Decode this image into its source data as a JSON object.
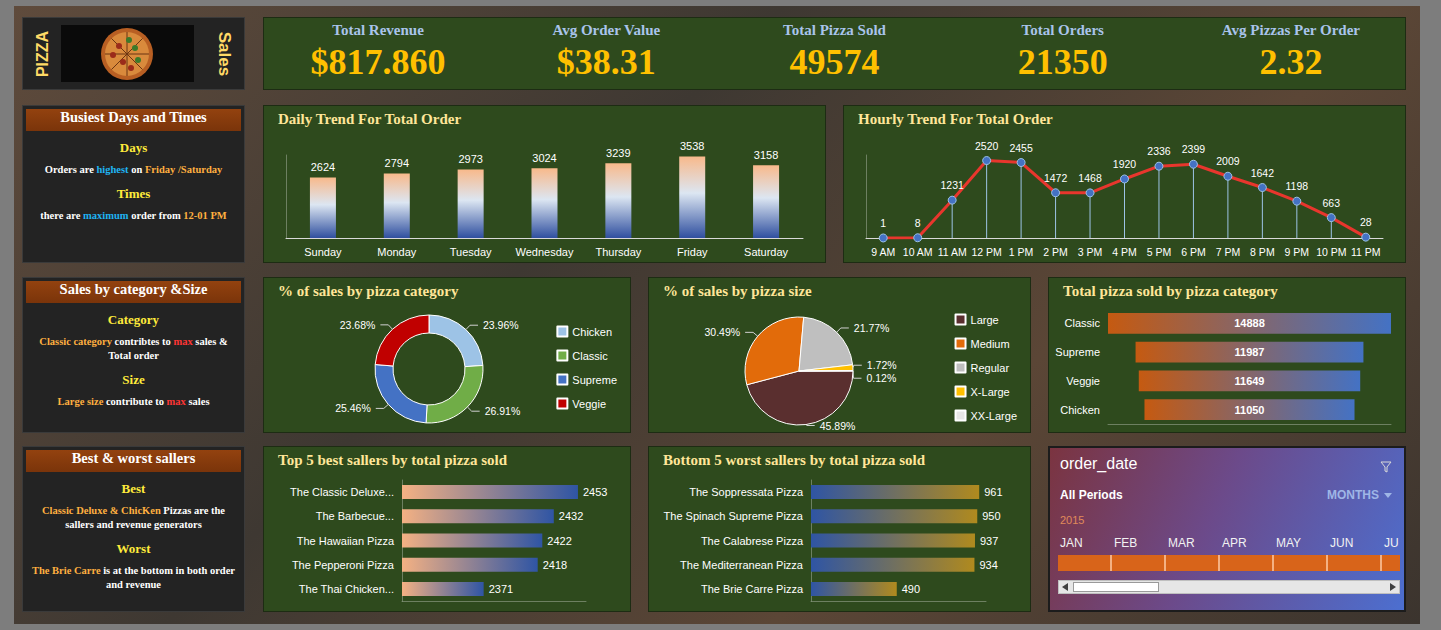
{
  "header": {
    "left_text": "PIZZA",
    "right_text": "Sales"
  },
  "kpis": [
    {
      "label": "Total Revenue",
      "value": "$817.860"
    },
    {
      "label": "Avg Order Value",
      "value": "$38.31"
    },
    {
      "label": "Total Pizza Sold",
      "value": "49574"
    },
    {
      "label": "Total Orders",
      "value": "21350"
    },
    {
      "label": "Avg Pizzas Per Order",
      "value": "2.32"
    }
  ],
  "insights": [
    {
      "title": "Busiest Days and Times",
      "items": [
        {
          "heading": "Days",
          "text": [
            {
              "text": "Orders are "
            },
            {
              "text": "highest",
              "style": "accent"
            },
            {
              "text": " on "
            },
            {
              "text": "Friday /Saturday",
              "style": "warm"
            }
          ]
        },
        {
          "heading": "Times",
          "text": [
            {
              "text": "there are "
            },
            {
              "text": "maximum",
              "style": "accent"
            },
            {
              "text": " order  from "
            },
            {
              "text": "12-01 PM",
              "style": "warm"
            }
          ]
        }
      ]
    },
    {
      "title": "Sales by category &Size",
      "items": [
        {
          "heading": "Category",
          "text": [
            {
              "text": "Classic category",
              "style": "warm"
            },
            {
              "text": " contribtes to "
            },
            {
              "text": "max",
              "style": "alert"
            },
            {
              "text": " sales & Total order"
            }
          ]
        },
        {
          "heading": "Size",
          "text": [
            {
              "text": "Large size",
              "style": "warm"
            },
            {
              "text": " contribute to "
            },
            {
              "text": "max",
              "style": "alert"
            },
            {
              "text": " sales"
            }
          ]
        }
      ]
    },
    {
      "title": "Best & worst sallers",
      "items": [
        {
          "heading": "Best",
          "text": [
            {
              "text": "Classic Deluxe & ChicKen",
              "style": "warm"
            },
            {
              "text": " Pizzas are the sallers and revenue generators"
            }
          ]
        },
        {
          "heading": "Worst",
          "text": [
            {
              "text": "The Brie Carre",
              "style": "warm"
            },
            {
              "text": " is at the bottom in both order and revenue"
            }
          ]
        }
      ]
    }
  ],
  "chart_data": [
    {
      "type": "bar",
      "title": "Daily Trend For Total Order",
      "categories": [
        "Sunday",
        "Monday",
        "Tuesday",
        "Wednesday",
        "Thursday",
        "Friday",
        "Saturday"
      ],
      "values": [
        2624,
        2794,
        2973,
        3024,
        3239,
        3538,
        3158
      ],
      "color": "#f8b98b",
      "ylim": [
        0,
        3600
      ],
      "grid": false,
      "data_labels": true,
      "tick_labels": "x"
    },
    {
      "type": "line",
      "title": "Hourly Trend For Total Order",
      "categories": [
        "9 AM",
        "10 AM",
        "11 AM",
        "12 PM",
        "1 PM",
        "2 PM",
        "3 PM",
        "4 PM",
        "5 PM",
        "6 PM",
        "7 PM",
        "8 PM",
        "9 PM",
        "10 PM",
        "11 PM"
      ],
      "values": [
        1,
        8,
        1231,
        2520,
        2455,
        1472,
        1468,
        1920,
        2336,
        2399,
        2009,
        1642,
        1198,
        663,
        28
      ],
      "color": "#e8362d",
      "marker": "circle",
      "line_style": "solid",
      "ylim": [
        0,
        2700
      ],
      "grid": false,
      "data_labels": true,
      "tick_labels": "x"
    },
    {
      "type": "donut",
      "title": "% of sales by pizza category",
      "categories": [
        "Chicken",
        "Classic",
        "Supreme",
        "Veggie"
      ],
      "values": [
        23.96,
        26.91,
        25.46,
        23.68
      ],
      "value_labels": [
        "23.96%",
        "26.91%",
        "25.46%",
        "23.68%"
      ],
      "colors": [
        "#9dc3e6",
        "#70ad47",
        "#4472c4",
        "#c00000"
      ],
      "legend": "right",
      "data_labels": true
    },
    {
      "type": "pie",
      "title": "% of sales by pizza size",
      "categories": [
        "Large",
        "Medium",
        "Regular",
        "X-Large",
        "XX-Large"
      ],
      "values": [
        45.89,
        30.49,
        21.77,
        1.72,
        0.12
      ],
      "value_labels": [
        "45.89%",
        "30.49%",
        "21.77%",
        "1.72%",
        "0.12%"
      ],
      "colors": [
        "#5a2f2f",
        "#e26b0a",
        "#bfbfbf",
        "#ffc000",
        "#e7e6e6"
      ],
      "legend": "right",
      "data_labels": true
    },
    {
      "type": "funnel",
      "title": "Total pizza sold by pizza category",
      "orientation": "horizontal",
      "categories": [
        "Classic",
        "Supreme",
        "Veggie",
        "Chicken"
      ],
      "values": [
        14888,
        11987,
        11649,
        11050
      ],
      "color": "#c55a11",
      "xlim": [
        0,
        14888
      ],
      "grid": false,
      "data_labels": true,
      "tick_labels": "y"
    },
    {
      "type": "bar",
      "title": "Top 5 best sallers by total pizza sold",
      "orientation": "horizontal",
      "categories": [
        "The Classic Deluxe...",
        "The Barbecue...",
        "The Hawaiian Pizza",
        "The Pepperoni Pizza",
        "The Thai Chicken..."
      ],
      "values": [
        2453,
        2432,
        2422,
        2418,
        2371
      ],
      "color": "#f4b183",
      "xlim": [
        2300,
        2460
      ],
      "grid": false,
      "data_labels": true,
      "tick_labels": "y"
    },
    {
      "type": "bar",
      "title": "Bottom 5 worst sallers by total pizza sold",
      "orientation": "horizontal",
      "categories": [
        "The Soppressata Pizza",
        "The Spinach Supreme Pizza",
        "The Calabrese Pizza",
        "The Mediterranean Pizza",
        "The Brie Carre Pizza"
      ],
      "values": [
        961,
        950,
        937,
        934,
        490
      ],
      "color": "#2f55a4",
      "xlim": [
        0,
        1000
      ],
      "grid": false,
      "data_labels": true,
      "tick_labels": "y"
    }
  ],
  "slicer": {
    "title": "order_date",
    "selection": "All Periods",
    "level": "MONTHS",
    "year": "2015",
    "months": [
      "JAN",
      "FEB",
      "MAR",
      "APR",
      "MAY",
      "JUN",
      "JU"
    ]
  }
}
